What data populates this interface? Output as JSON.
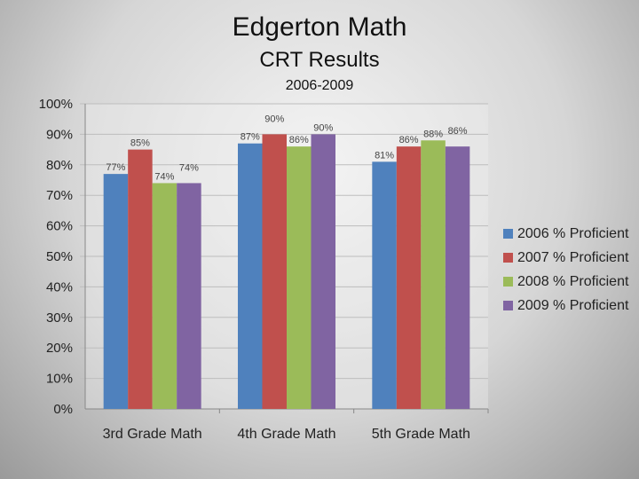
{
  "chart_data": {
    "type": "bar",
    "title": "Edgerton Math",
    "subtitle": "CRT Results",
    "subtitle2": "2006-2009",
    "categories": [
      "3rd Grade Math",
      "4th Grade Math",
      "5th Grade Math"
    ],
    "yticks": [
      "0%",
      "10%",
      "20%",
      "30%",
      "40%",
      "50%",
      "60%",
      "70%",
      "80%",
      "90%",
      "100%"
    ],
    "ylim": [
      0,
      100
    ],
    "grid": true,
    "legend_position": "right",
    "series": [
      {
        "name": "2006 % Proficient",
        "color": "#4f81bd",
        "values": [
          77,
          87,
          81
        ],
        "labels": [
          "77%",
          "87%",
          "81%"
        ]
      },
      {
        "name": "2007 % Proficient",
        "color": "#c0504d",
        "values": [
          85,
          90,
          86
        ],
        "labels": [
          "85%",
          "90%",
          "86%"
        ]
      },
      {
        "name": "2008 % Proficient",
        "color": "#9bbb59",
        "values": [
          74,
          86,
          88
        ],
        "labels": [
          "74%",
          "86%",
          "88%"
        ]
      },
      {
        "name": "2009 % Proficient",
        "color": "#8064a2",
        "values": [
          74,
          90,
          86
        ],
        "labels": [
          "74%",
          "90%",
          "86%"
        ]
      }
    ]
  }
}
